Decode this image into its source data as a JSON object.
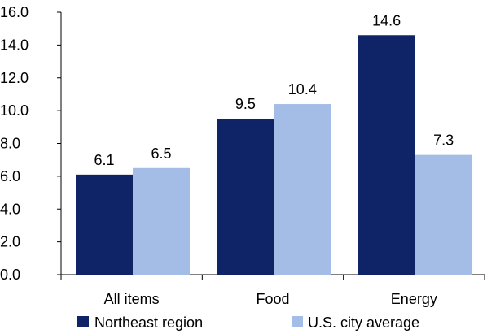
{
  "chart_data": {
    "type": "bar",
    "categories": [
      "All items",
      "Food",
      "Energy"
    ],
    "series": [
      {
        "name": "Northeast region",
        "values": [
          6.1,
          9.5,
          14.6
        ],
        "color": "#0f2466"
      },
      {
        "name": "U.S. city average",
        "values": [
          6.5,
          10.4,
          7.3
        ],
        "color": "#a4bde6"
      }
    ],
    "data_labels": [
      [
        "6.1",
        "9.5",
        "14.6"
      ],
      [
        "6.5",
        "10.4",
        "7.3"
      ]
    ],
    "yticks": [
      "0.0",
      "2.0",
      "4.0",
      "6.0",
      "8.0",
      "10.0",
      "12.0",
      "14.0",
      "16.0"
    ],
    "ylim": [
      0,
      16
    ],
    "title": "",
    "xlabel": "",
    "ylabel": "",
    "grid": false,
    "legend_position": "bottom"
  }
}
